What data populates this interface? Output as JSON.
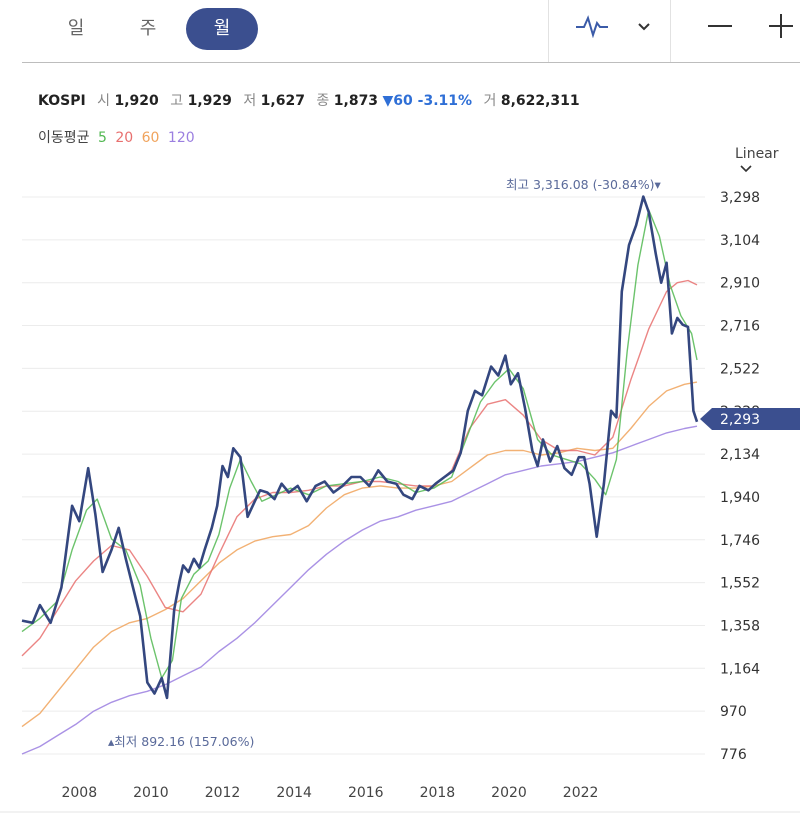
{
  "tabs": [
    {
      "label": "일",
      "active": false
    },
    {
      "label": "주",
      "active": false
    },
    {
      "label": "월",
      "active": true
    }
  ],
  "toolbar": {
    "chart_icon": "line-chart-icon",
    "dropdown_icon": "chevron-down-icon",
    "zoom_out_icon": "minus-icon",
    "zoom_in_icon": "plus-icon"
  },
  "quote": {
    "name": "KOSPI",
    "open_label": "시",
    "open": "1,920",
    "high_label": "고",
    "high": "1,929",
    "low_label": "저",
    "low": "1,627",
    "close_label": "종",
    "close": "1,873",
    "change": "▼60 -3.11%",
    "volume_label": "거",
    "volume": "8,622,311"
  },
  "moving_average": {
    "label": "이동평균",
    "periods": [
      "5",
      "20",
      "60",
      "120"
    ],
    "colors": [
      "#52b852",
      "#e8706f",
      "#f0a35c",
      "#9b7fe0"
    ]
  },
  "scale_selector": "Linear",
  "chart_data": {
    "type": "line",
    "x_ticks": [
      "2008",
      "2010",
      "2012",
      "2014",
      "2016",
      "2018",
      "2020",
      "2022"
    ],
    "y_ticks": [
      "3,298",
      "3,104",
      "2,910",
      "2,716",
      "2,522",
      "2,328",
      "2,134",
      "1,940",
      "1,746",
      "1,552",
      "1,358",
      "1,164",
      "970",
      "776"
    ],
    "ylim": [
      776,
      3298
    ],
    "current_value_label": "2,293",
    "current_value": 2293,
    "max_annotation": "최고 3,316.08 (-30.84%)▾",
    "min_annotation": "▴최저 892.16 (157.06%)",
    "series": [
      {
        "name": "KOSPI",
        "color": "#34477f",
        "points": [
          [
            2006.5,
            1380
          ],
          [
            2006.8,
            1370
          ],
          [
            2007.0,
            1450
          ],
          [
            2007.3,
            1370
          ],
          [
            2007.6,
            1530
          ],
          [
            2007.9,
            1900
          ],
          [
            2008.1,
            1830
          ],
          [
            2008.35,
            2070
          ],
          [
            2008.55,
            1860
          ],
          [
            2008.75,
            1600
          ],
          [
            2009.0,
            1700
          ],
          [
            2009.2,
            1800
          ],
          [
            2009.4,
            1660
          ],
          [
            2009.6,
            1530
          ],
          [
            2009.8,
            1400
          ],
          [
            2010.0,
            1100
          ],
          [
            2010.2,
            1050
          ],
          [
            2010.4,
            1120
          ],
          [
            2010.55,
            1030
          ],
          [
            2010.75,
            1430
          ],
          [
            2010.9,
            1560
          ],
          [
            2011.0,
            1630
          ],
          [
            2011.15,
            1600
          ],
          [
            2011.3,
            1660
          ],
          [
            2011.45,
            1620
          ],
          [
            2011.6,
            1700
          ],
          [
            2011.8,
            1800
          ],
          [
            2011.95,
            1900
          ],
          [
            2012.1,
            2080
          ],
          [
            2012.25,
            2030
          ],
          [
            2012.4,
            2160
          ],
          [
            2012.6,
            2120
          ],
          [
            2012.8,
            1850
          ],
          [
            2013.0,
            1920
          ],
          [
            2013.15,
            1970
          ],
          [
            2013.35,
            1960
          ],
          [
            2013.55,
            1930
          ],
          [
            2013.75,
            2000
          ],
          [
            2013.95,
            1960
          ],
          [
            2014.2,
            1990
          ],
          [
            2014.45,
            1920
          ],
          [
            2014.7,
            1990
          ],
          [
            2014.95,
            2010
          ],
          [
            2015.2,
            1960
          ],
          [
            2015.45,
            1990
          ],
          [
            2015.7,
            2030
          ],
          [
            2015.95,
            2030
          ],
          [
            2016.2,
            1990
          ],
          [
            2016.45,
            2060
          ],
          [
            2016.7,
            2010
          ],
          [
            2016.95,
            2000
          ],
          [
            2017.15,
            1950
          ],
          [
            2017.4,
            1930
          ],
          [
            2017.6,
            1990
          ],
          [
            2017.85,
            1970
          ],
          [
            2018.05,
            2000
          ],
          [
            2018.3,
            2030
          ],
          [
            2018.55,
            2060
          ],
          [
            2018.75,
            2140
          ],
          [
            2018.95,
            2330
          ],
          [
            2019.15,
            2420
          ],
          [
            2019.35,
            2400
          ],
          [
            2019.6,
            2530
          ],
          [
            2019.8,
            2490
          ],
          [
            2020.0,
            2580
          ],
          [
            2020.15,
            2450
          ],
          [
            2020.35,
            2500
          ],
          [
            2020.55,
            2340
          ],
          [
            2020.75,
            2150
          ],
          [
            2020.9,
            2080
          ],
          [
            2021.05,
            2200
          ],
          [
            2021.25,
            2100
          ],
          [
            2021.45,
            2170
          ],
          [
            2021.65,
            2070
          ],
          [
            2021.85,
            2040
          ],
          [
            2022.05,
            2120
          ],
          [
            2022.2,
            2120
          ],
          [
            2022.35,
            2000
          ],
          [
            2022.55,
            1760
          ],
          [
            2022.75,
            2000
          ],
          [
            2022.95,
            2330
          ],
          [
            2023.1,
            2300
          ],
          [
            2023.25,
            2870
          ],
          [
            2023.45,
            3080
          ],
          [
            2023.65,
            3170
          ],
          [
            2023.85,
            3300
          ],
          [
            2024.0,
            3230
          ],
          [
            2024.2,
            3040
          ],
          [
            2024.35,
            2910
          ],
          [
            2024.5,
            3000
          ],
          [
            2024.65,
            2680
          ],
          [
            2024.8,
            2750
          ],
          [
            2024.95,
            2720
          ],
          [
            2025.1,
            2710
          ],
          [
            2025.25,
            2330
          ],
          [
            2025.35,
            2280
          ]
        ]
      },
      {
        "name": "5",
        "color": "#52b852",
        "points": [
          [
            2006.5,
            1330
          ],
          [
            2007.0,
            1390
          ],
          [
            2007.5,
            1470
          ],
          [
            2007.9,
            1700
          ],
          [
            2008.3,
            1880
          ],
          [
            2008.6,
            1930
          ],
          [
            2009.0,
            1750
          ],
          [
            2009.4,
            1700
          ],
          [
            2009.8,
            1540
          ],
          [
            2010.1,
            1300
          ],
          [
            2010.4,
            1120
          ],
          [
            2010.7,
            1200
          ],
          [
            2010.95,
            1480
          ],
          [
            2011.3,
            1590
          ],
          [
            2011.7,
            1650
          ],
          [
            2012.0,
            1770
          ],
          [
            2012.3,
            1980
          ],
          [
            2012.6,
            2110
          ],
          [
            2012.9,
            2010
          ],
          [
            2013.2,
            1920
          ],
          [
            2013.6,
            1950
          ],
          [
            2014.0,
            1980
          ],
          [
            2014.5,
            1950
          ],
          [
            2015.0,
            1990
          ],
          [
            2015.5,
            2000
          ],
          [
            2016.0,
            2010
          ],
          [
            2016.5,
            2030
          ],
          [
            2017.0,
            2010
          ],
          [
            2017.5,
            1960
          ],
          [
            2018.0,
            1980
          ],
          [
            2018.5,
            2030
          ],
          [
            2018.9,
            2200
          ],
          [
            2019.3,
            2370
          ],
          [
            2019.7,
            2460
          ],
          [
            2020.1,
            2520
          ],
          [
            2020.5,
            2430
          ],
          [
            2020.9,
            2200
          ],
          [
            2021.3,
            2130
          ],
          [
            2021.7,
            2110
          ],
          [
            2022.1,
            2090
          ],
          [
            2022.5,
            2020
          ],
          [
            2022.8,
            1950
          ],
          [
            2023.1,
            2110
          ],
          [
            2023.4,
            2600
          ],
          [
            2023.7,
            2990
          ],
          [
            2024.0,
            3240
          ],
          [
            2024.3,
            3120
          ],
          [
            2024.6,
            2900
          ],
          [
            2024.9,
            2760
          ],
          [
            2025.2,
            2680
          ],
          [
            2025.35,
            2560
          ]
        ]
      },
      {
        "name": "20",
        "color": "#e8706f",
        "points": [
          [
            2006.5,
            1220
          ],
          [
            2007.0,
            1300
          ],
          [
            2007.5,
            1430
          ],
          [
            2008.0,
            1560
          ],
          [
            2008.5,
            1650
          ],
          [
            2009.0,
            1720
          ],
          [
            2009.5,
            1700
          ],
          [
            2010.0,
            1580
          ],
          [
            2010.5,
            1440
          ],
          [
            2011.0,
            1420
          ],
          [
            2011.5,
            1500
          ],
          [
            2012.0,
            1680
          ],
          [
            2012.5,
            1850
          ],
          [
            2013.0,
            1930
          ],
          [
            2013.5,
            1960
          ],
          [
            2014.0,
            1960
          ],
          [
            2014.5,
            1970
          ],
          [
            2015.0,
            1990
          ],
          [
            2015.5,
            1990
          ],
          [
            2016.0,
            2010
          ],
          [
            2016.5,
            2010
          ],
          [
            2017.0,
            2000
          ],
          [
            2017.5,
            1990
          ],
          [
            2018.0,
            1990
          ],
          [
            2018.5,
            2060
          ],
          [
            2019.0,
            2250
          ],
          [
            2019.5,
            2360
          ],
          [
            2020.0,
            2380
          ],
          [
            2020.5,
            2310
          ],
          [
            2021.0,
            2200
          ],
          [
            2021.5,
            2150
          ],
          [
            2022.0,
            2150
          ],
          [
            2022.5,
            2130
          ],
          [
            2023.0,
            2210
          ],
          [
            2023.5,
            2470
          ],
          [
            2024.0,
            2700
          ],
          [
            2024.5,
            2870
          ],
          [
            2024.8,
            2910
          ],
          [
            2025.1,
            2920
          ],
          [
            2025.35,
            2900
          ]
        ]
      },
      {
        "name": "60",
        "color": "#f0a35c",
        "points": [
          [
            2006.5,
            900
          ],
          [
            2007.0,
            960
          ],
          [
            2007.5,
            1060
          ],
          [
            2008.0,
            1160
          ],
          [
            2008.5,
            1260
          ],
          [
            2009.0,
            1330
          ],
          [
            2009.5,
            1370
          ],
          [
            2010.0,
            1390
          ],
          [
            2010.5,
            1430
          ],
          [
            2011.0,
            1480
          ],
          [
            2011.5,
            1560
          ],
          [
            2012.0,
            1640
          ],
          [
            2012.5,
            1700
          ],
          [
            2013.0,
            1740
          ],
          [
            2013.5,
            1760
          ],
          [
            2014.0,
            1770
          ],
          [
            2014.5,
            1810
          ],
          [
            2015.0,
            1890
          ],
          [
            2015.5,
            1950
          ],
          [
            2016.0,
            1980
          ],
          [
            2016.5,
            1990
          ],
          [
            2017.0,
            1980
          ],
          [
            2017.5,
            1980
          ],
          [
            2018.0,
            1990
          ],
          [
            2018.5,
            2010
          ],
          [
            2019.0,
            2070
          ],
          [
            2019.5,
            2130
          ],
          [
            2020.0,
            2150
          ],
          [
            2020.5,
            2150
          ],
          [
            2021.0,
            2130
          ],
          [
            2021.5,
            2140
          ],
          [
            2022.0,
            2160
          ],
          [
            2022.5,
            2150
          ],
          [
            2023.0,
            2160
          ],
          [
            2023.5,
            2250
          ],
          [
            2024.0,
            2350
          ],
          [
            2024.5,
            2420
          ],
          [
            2025.0,
            2450
          ],
          [
            2025.35,
            2460
          ]
        ]
      },
      {
        "name": "120",
        "color": "#9b7fe0",
        "points": [
          [
            2006.5,
            776
          ],
          [
            2007.0,
            810
          ],
          [
            2007.5,
            860
          ],
          [
            2008.0,
            910
          ],
          [
            2008.5,
            970
          ],
          [
            2009.0,
            1010
          ],
          [
            2009.5,
            1040
          ],
          [
            2010.0,
            1060
          ],
          [
            2010.5,
            1090
          ],
          [
            2011.0,
            1130
          ],
          [
            2011.5,
            1170
          ],
          [
            2012.0,
            1240
          ],
          [
            2012.5,
            1300
          ],
          [
            2013.0,
            1370
          ],
          [
            2013.5,
            1450
          ],
          [
            2014.0,
            1530
          ],
          [
            2014.5,
            1610
          ],
          [
            2015.0,
            1680
          ],
          [
            2015.5,
            1740
          ],
          [
            2016.0,
            1790
          ],
          [
            2016.5,
            1830
          ],
          [
            2017.0,
            1850
          ],
          [
            2017.5,
            1880
          ],
          [
            2018.0,
            1900
          ],
          [
            2018.5,
            1920
          ],
          [
            2019.0,
            1960
          ],
          [
            2019.5,
            2000
          ],
          [
            2020.0,
            2040
          ],
          [
            2020.5,
            2060
          ],
          [
            2021.0,
            2080
          ],
          [
            2021.5,
            2090
          ],
          [
            2022.0,
            2100
          ],
          [
            2022.5,
            2120
          ],
          [
            2023.0,
            2140
          ],
          [
            2023.5,
            2170
          ],
          [
            2024.0,
            2200
          ],
          [
            2024.5,
            2230
          ],
          [
            2025.0,
            2250
          ],
          [
            2025.35,
            2260
          ]
        ]
      }
    ]
  }
}
